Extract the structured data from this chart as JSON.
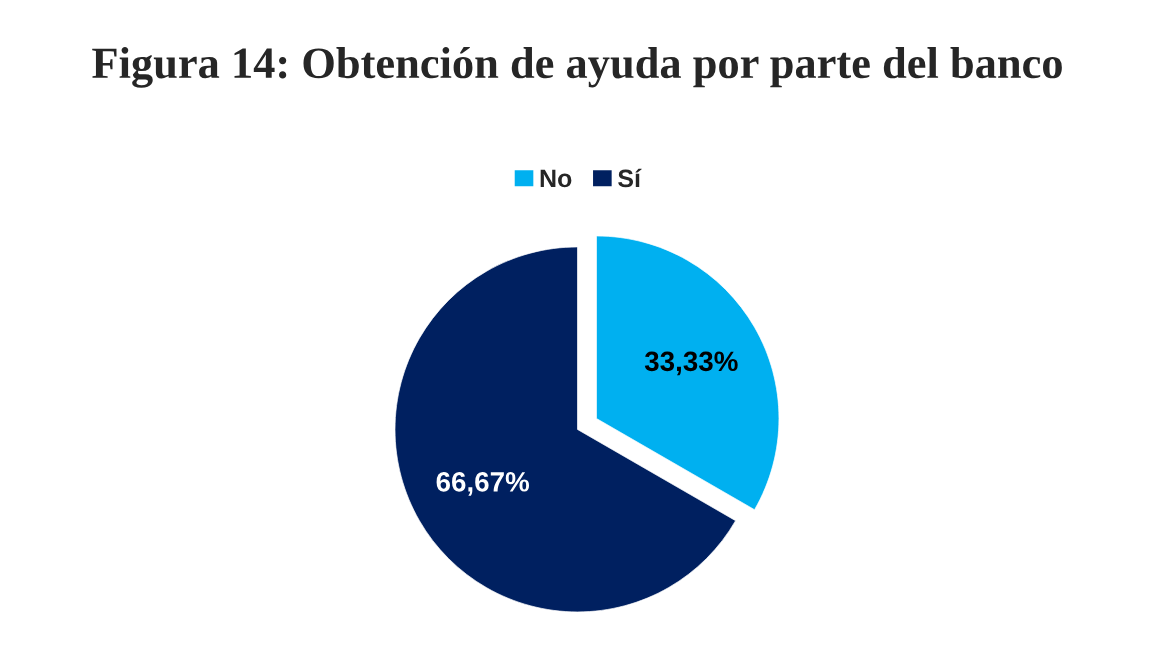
{
  "chart_data": {
    "type": "pie",
    "title": "Figura 14: Obtención de ayuda por parte del banco",
    "categories": [
      "No",
      "Sí"
    ],
    "values": [
      33.33,
      66.67
    ],
    "colors": [
      "#00b0f0",
      "#002060"
    ],
    "value_labels": [
      "33,33%",
      "66,67%"
    ],
    "legend": "top"
  }
}
